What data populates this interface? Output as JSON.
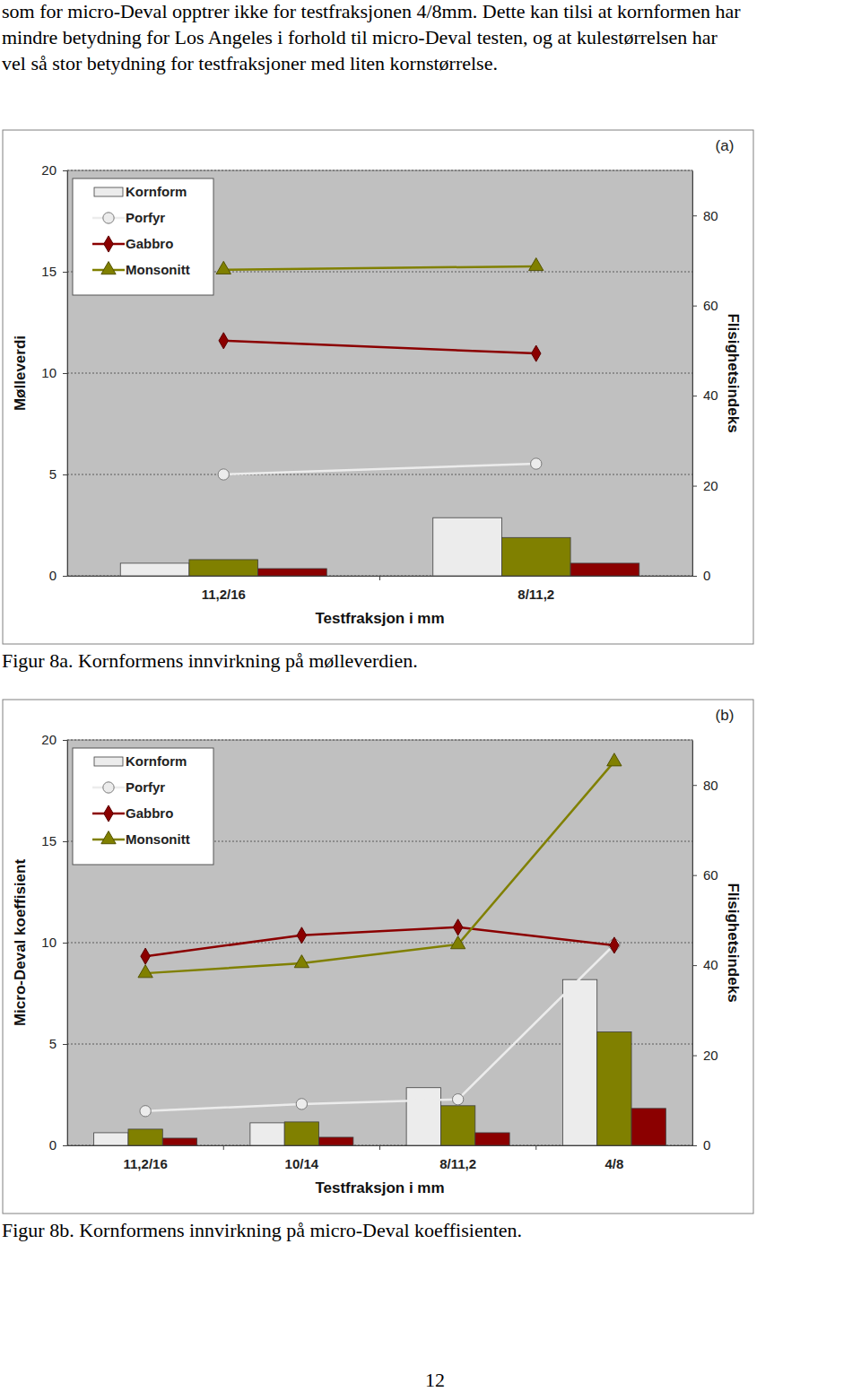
{
  "text": {
    "lines": [
      "som for micro-Deval opptrer ikke for testfraksjonen 4/8mm. Dette kan tilsi at kornformen har",
      "mindre betydning for Los Angeles i forhold til micro-Deval testen, og at kulestørrelsen har",
      "vel så stor betydning for testfraksjoner med liten kornstørrelse."
    ]
  },
  "chart_data": [
    {
      "type": "bar",
      "annotation": "(a)",
      "x_label": "Testfraksjon i mm",
      "y_label": "Mølleverdi",
      "y2_label": "Flisighetsindeks",
      "categories": [
        "11,2/16",
        "8/11,2"
      ],
      "ylim": [
        0,
        20
      ],
      "yticks": [
        0,
        5,
        10,
        15,
        20
      ],
      "y2lim": [
        0,
        90
      ],
      "y2ticks": [
        0,
        20,
        40,
        60,
        80
      ],
      "grid": true,
      "legend": "top-left",
      "series": [
        {
          "name": "Kornform",
          "type": "bar",
          "axis": "y2",
          "color": "#ececec",
          "values": [
            2.8,
            12.9
          ]
        },
        {
          "type": "bar",
          "axis": "y2",
          "color": "#808000",
          "values": [
            3.6,
            8.5
          ]
        },
        {
          "type": "bar",
          "axis": "y2",
          "color": "#8b0000",
          "values": [
            1.6,
            2.8
          ]
        },
        {
          "name": "Porfyr",
          "type": "line",
          "color": "#ececec",
          "marker": "circle",
          "values": [
            5.0,
            5.53
          ]
        },
        {
          "name": "Gabbro",
          "type": "line",
          "color": "#8b0000",
          "marker": "diamond",
          "values": [
            11.6,
            10.97
          ]
        },
        {
          "name": "Monsonitt",
          "type": "line",
          "color": "#808000",
          "marker": "triangle",
          "values": [
            15.1,
            15.27
          ]
        }
      ]
    },
    {
      "type": "bar",
      "annotation": "(b)",
      "x_label": "Testfraksjon i mm",
      "y_label": "Micro-Deval koeffisient",
      "y2_label": "Flisighetsindeks",
      "categories": [
        "11,2/16",
        "10/14",
        "8/11,2",
        "4/8"
      ],
      "ylim": [
        0,
        20
      ],
      "yticks": [
        0,
        5,
        10,
        15,
        20
      ],
      "y2lim": [
        0,
        90
      ],
      "y2ticks": [
        0,
        20,
        40,
        60,
        80
      ],
      "grid": true,
      "legend": "top-left",
      "series": [
        {
          "name": "Kornform",
          "type": "bar",
          "axis": "y2",
          "color": "#ececec",
          "values": [
            2.8,
            5.0,
            12.8,
            36.8
          ]
        },
        {
          "type": "bar",
          "axis": "y2",
          "color": "#808000",
          "values": [
            3.6,
            5.2,
            8.8,
            25.2
          ]
        },
        {
          "type": "bar",
          "axis": "y2",
          "color": "#8b0000",
          "values": [
            1.6,
            1.8,
            2.8,
            8.2
          ]
        },
        {
          "name": "Porfyr",
          "type": "line",
          "color": "#ececec",
          "marker": "circle",
          "values": [
            1.69,
            2.04,
            2.27,
            9.9
          ]
        },
        {
          "name": "Gabbro",
          "type": "line",
          "color": "#8b0000",
          "marker": "diamond",
          "values": [
            9.33,
            10.36,
            10.76,
            9.87
          ]
        },
        {
          "name": "Monsonitt",
          "type": "line",
          "color": "#808000",
          "marker": "triangle",
          "values": [
            8.49,
            8.98,
            9.91,
            18.93
          ]
        }
      ]
    }
  ],
  "captions": [
    "Figur 8a. Kornformens innvirkning på mølleverdien.",
    "Figur 8b. Kornformens innvirkning på micro-Deval koeffisienten."
  ],
  "page_number": "12"
}
